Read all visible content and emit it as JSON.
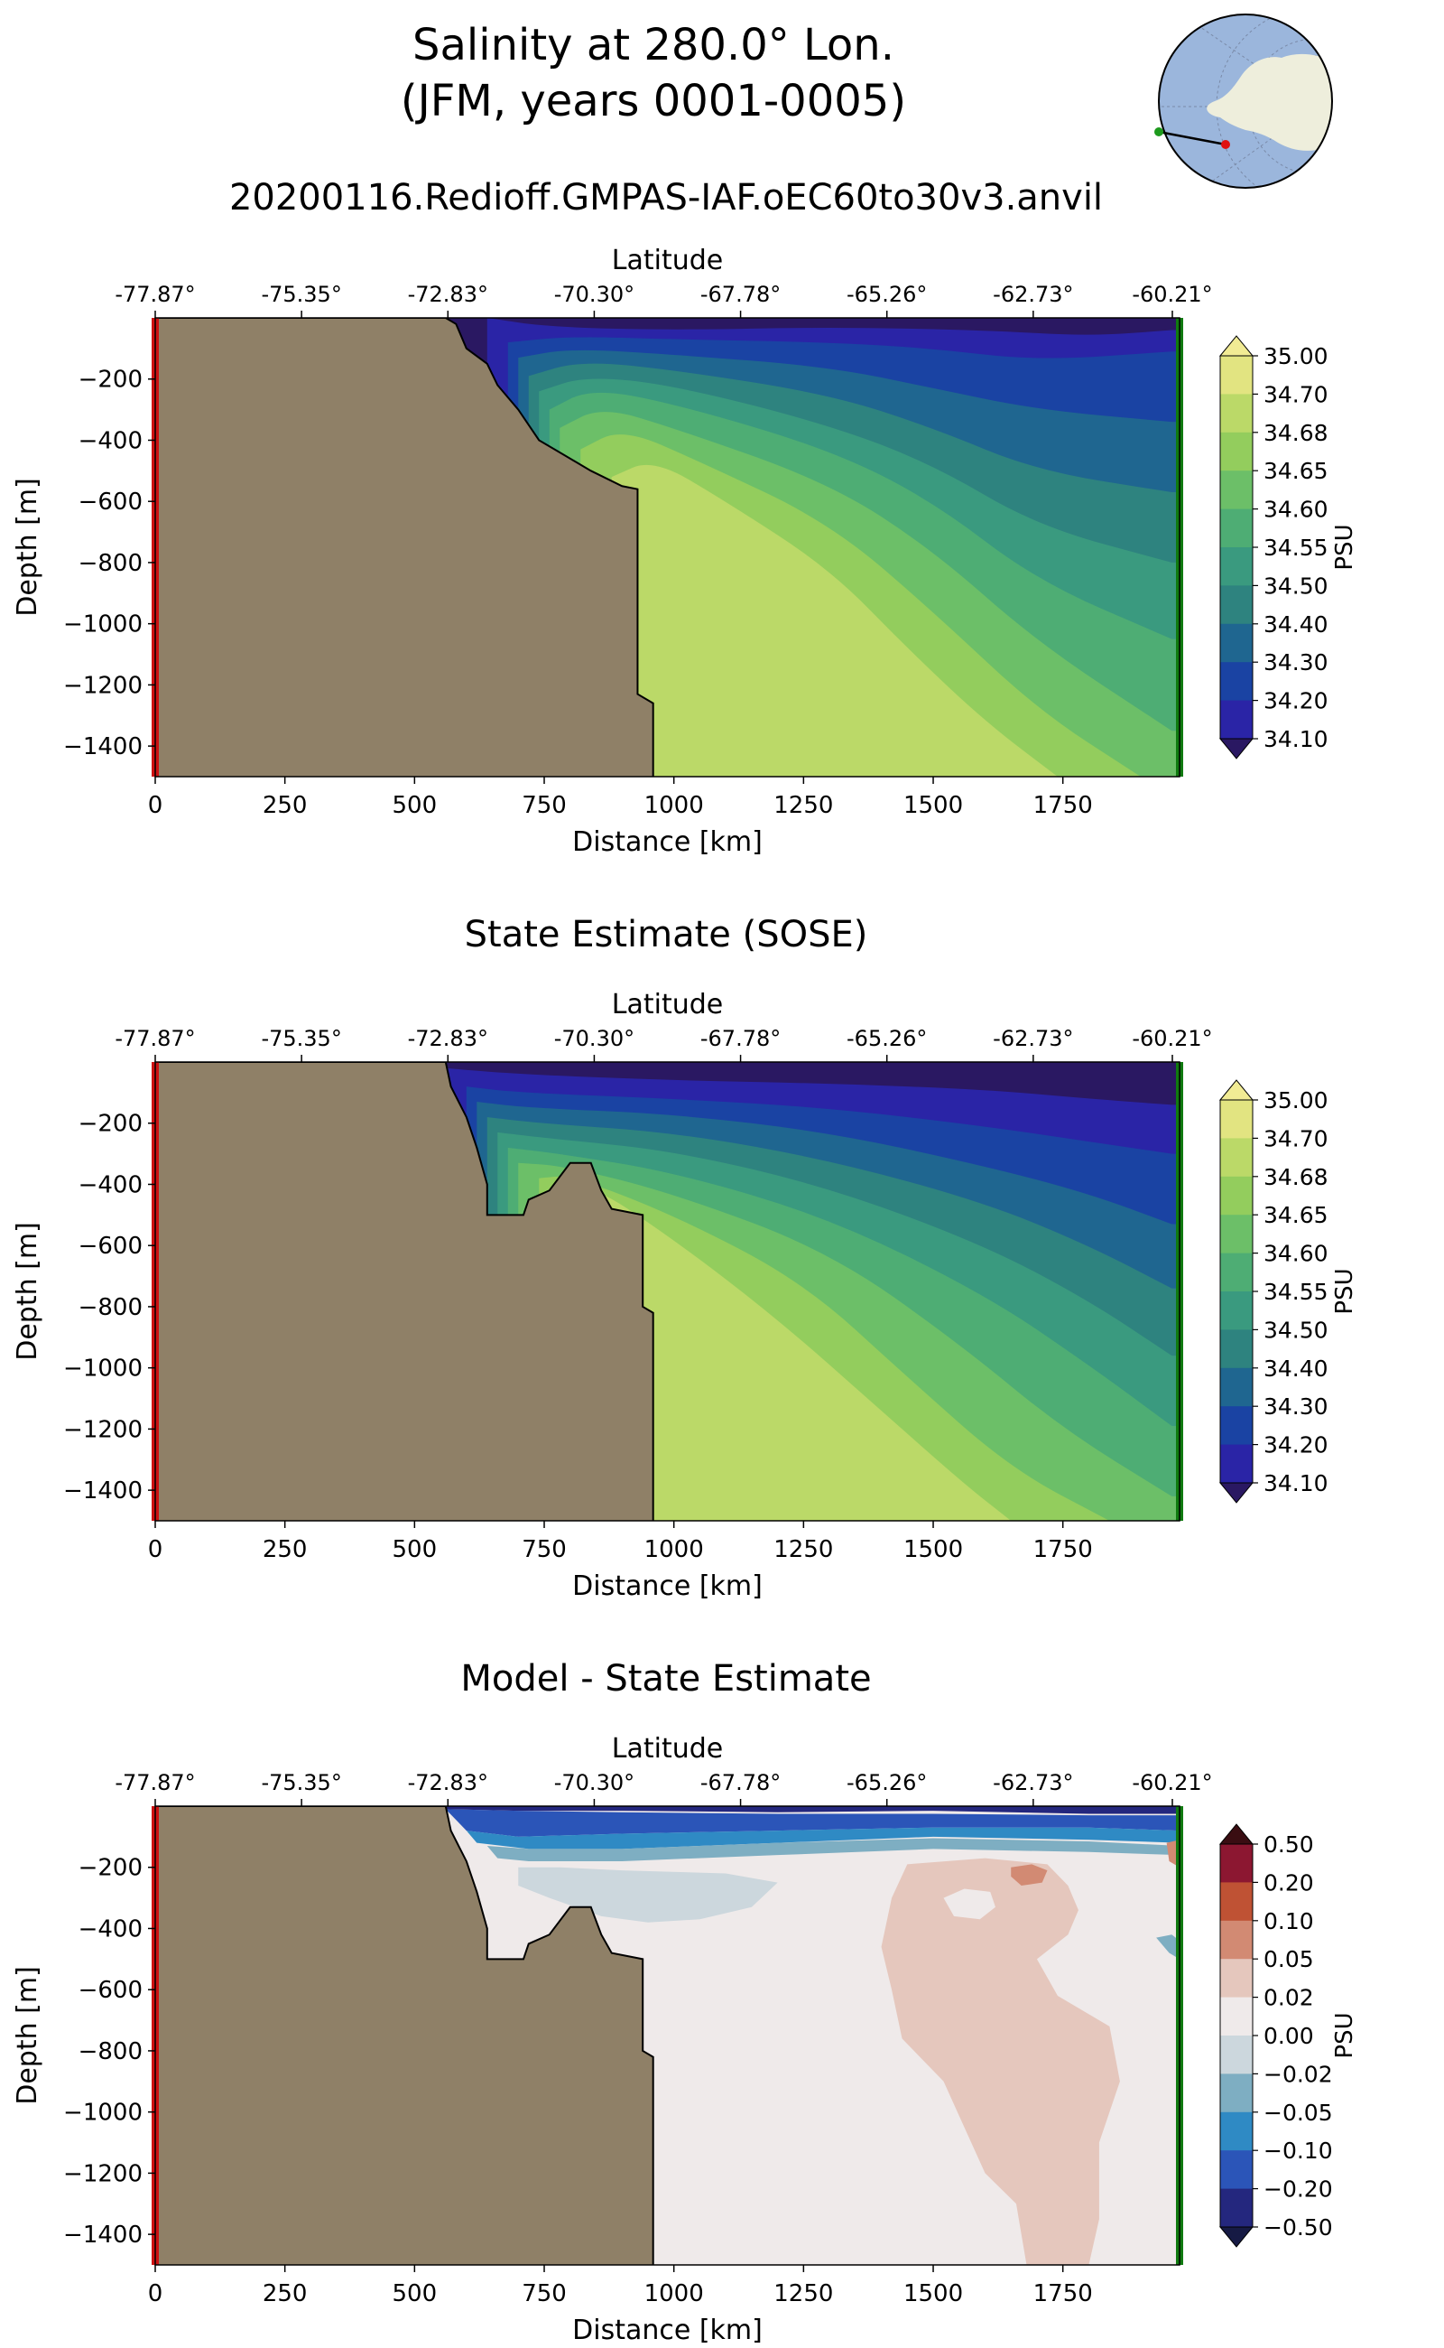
{
  "title_line1": "Salinity at 280.0° Lon.",
  "title_line2": "(JFM, years 0001-0005)",
  "run_name": "20200116.Redioff.GMPAS-IAF.oEC60to30v3.anvil",
  "colors": {
    "land": "#8f8067",
    "start_marker": "#cc1111",
    "end_marker": "#107a10",
    "ocean_globe": "#9bb6dc",
    "antarctica": "#eeeedc"
  },
  "chart_data": [
    {
      "type": "contourf",
      "title": "",
      "top_xlabel": "Latitude",
      "top_ticks": [
        "-77.87°",
        "-75.35°",
        "-72.83°",
        "-70.30°",
        "-67.78°",
        "-65.26°",
        "-62.73°",
        "-60.21°"
      ],
      "xlabel": "Distance [km]",
      "xticks": [
        0,
        250,
        500,
        750,
        1000,
        1250,
        1500,
        1750
      ],
      "xlim": [
        0,
        1975
      ],
      "ylabel": "Depth [m]",
      "yticks": [
        -200,
        -400,
        -600,
        -800,
        -1000,
        -1200,
        -1400
      ],
      "ylim": [
        -1500,
        0
      ],
      "colorbar_label": "PSU",
      "colorbar_ticks": [
        "35.00",
        "34.70",
        "34.68",
        "34.65",
        "34.60",
        "34.55",
        "34.50",
        "34.40",
        "34.30",
        "34.20",
        "34.10"
      ],
      "colorbar_colors": [
        "#f1eb94",
        "#e2e481",
        "#bbd968",
        "#93cd5d",
        "#6cbf68",
        "#4ead74",
        "#3a9a7f",
        "#2e837f",
        "#1f6690",
        "#1a43a3",
        "#2a24a6",
        "#2a1862"
      ],
      "colorbar_extend": "both",
      "isolines": [
        {
          "level": "34.10",
          "points": [
            [
              640,
              0
            ],
            [
              760,
              -30
            ],
            [
              1000,
              -40
            ],
            [
              1300,
              -30
            ],
            [
              1600,
              -40
            ],
            [
              1800,
              -60
            ],
            [
              1960,
              -40
            ]
          ]
        },
        {
          "level": "34.20",
          "points": [
            [
              680,
              -80
            ],
            [
              800,
              -60
            ],
            [
              1000,
              -70
            ],
            [
              1300,
              -80
            ],
            [
              1500,
              -100
            ],
            [
              1700,
              -140
            ],
            [
              1960,
              -110
            ]
          ]
        },
        {
          "level": "34.30",
          "points": [
            [
              700,
              -130
            ],
            [
              800,
              -100
            ],
            [
              1000,
              -120
            ],
            [
              1300,
              -160
            ],
            [
              1500,
              -230
            ],
            [
              1700,
              -300
            ],
            [
              1960,
              -340
            ]
          ]
        },
        {
          "level": "34.40",
          "points": [
            [
              720,
              -190
            ],
            [
              820,
              -140
            ],
            [
              1000,
              -170
            ],
            [
              1300,
              -250
            ],
            [
              1500,
              -360
            ],
            [
              1700,
              -500
            ],
            [
              1960,
              -570
            ]
          ]
        },
        {
          "level": "34.50",
          "points": [
            [
              740,
              -240
            ],
            [
              830,
              -190
            ],
            [
              1000,
              -220
            ],
            [
              1300,
              -350
            ],
            [
              1500,
              -480
            ],
            [
              1700,
              -680
            ],
            [
              1960,
              -800
            ]
          ]
        },
        {
          "level": "34.55",
          "points": [
            [
              760,
              -300
            ],
            [
              840,
              -230
            ],
            [
              1000,
              -280
            ],
            [
              1300,
              -430
            ],
            [
              1500,
              -600
            ],
            [
              1700,
              -860
            ],
            [
              1960,
              -1050
            ]
          ]
        },
        {
          "level": "34.60",
          "points": [
            [
              780,
              -360
            ],
            [
              860,
              -290
            ],
            [
              1000,
              -360
            ],
            [
              1300,
              -540
            ],
            [
              1500,
              -760
            ],
            [
              1700,
              -1060
            ],
            [
              1960,
              -1350
            ]
          ]
        },
        {
          "level": "34.65",
          "points": [
            [
              820,
              -430
            ],
            [
              900,
              -360
            ],
            [
              1050,
              -470
            ],
            [
              1300,
              -670
            ],
            [
              1500,
              -960
            ],
            [
              1700,
              -1280
            ],
            [
              1900,
              -1500
            ]
          ]
        },
        {
          "level": "34.68",
          "points": [
            [
              880,
              -520
            ],
            [
              960,
              -460
            ],
            [
              1100,
              -600
            ],
            [
              1300,
              -820
            ],
            [
              1450,
              -1080
            ],
            [
              1600,
              -1320
            ],
            [
              1740,
              -1500
            ]
          ]
        }
      ],
      "bathymetry_km_m": [
        [
          0,
          0
        ],
        [
          560,
          0
        ],
        [
          580,
          -20
        ],
        [
          600,
          -100
        ],
        [
          640,
          -150
        ],
        [
          660,
          -220
        ],
        [
          700,
          -300
        ],
        [
          740,
          -400
        ],
        [
          780,
          -440
        ],
        [
          840,
          -500
        ],
        [
          900,
          -550
        ],
        [
          930,
          -560
        ],
        [
          930,
          -1230
        ],
        [
          960,
          -1260
        ],
        [
          960,
          -1500
        ]
      ]
    },
    {
      "type": "contourf",
      "title": "State Estimate (SOSE)",
      "top_xlabel": "Latitude",
      "top_ticks": [
        "-77.87°",
        "-75.35°",
        "-72.83°",
        "-70.30°",
        "-67.78°",
        "-65.26°",
        "-62.73°",
        "-60.21°"
      ],
      "xlabel": "Distance [km]",
      "xticks": [
        0,
        250,
        500,
        750,
        1000,
        1250,
        1500,
        1750
      ],
      "xlim": [
        0,
        1975
      ],
      "ylabel": "Depth [m]",
      "yticks": [
        -200,
        -400,
        -600,
        -800,
        -1000,
        -1200,
        -1400
      ],
      "ylim": [
        -1500,
        0
      ],
      "colorbar_label": "PSU",
      "colorbar_ticks": [
        "35.00",
        "34.70",
        "34.68",
        "34.65",
        "34.60",
        "34.55",
        "34.50",
        "34.40",
        "34.30",
        "34.20",
        "34.10"
      ],
      "colorbar_colors": [
        "#f1eb94",
        "#e2e481",
        "#bbd968",
        "#93cd5d",
        "#6cbf68",
        "#4ead74",
        "#3a9a7f",
        "#2e837f",
        "#1f6690",
        "#1a43a3",
        "#2a24a6",
        "#2a1862"
      ],
      "colorbar_extend": "both",
      "isolines": [
        {
          "level": "34.10",
          "points": [
            [
              560,
              -20
            ],
            [
              700,
              -40
            ],
            [
              1000,
              -60
            ],
            [
              1300,
              -70
            ],
            [
              1600,
              -90
            ],
            [
              1800,
              -120
            ],
            [
              1960,
              -140
            ]
          ]
        },
        {
          "level": "34.20",
          "points": [
            [
              600,
              -80
            ],
            [
              700,
              -100
            ],
            [
              1000,
              -120
            ],
            [
              1300,
              -150
            ],
            [
              1600,
              -210
            ],
            [
              1800,
              -260
            ],
            [
              1960,
              -300
            ]
          ]
        },
        {
          "level": "34.30",
          "points": [
            [
              620,
              -130
            ],
            [
              720,
              -150
            ],
            [
              1000,
              -170
            ],
            [
              1300,
              -230
            ],
            [
              1600,
              -340
            ],
            [
              1800,
              -430
            ],
            [
              1960,
              -530
            ]
          ]
        },
        {
          "level": "34.40",
          "points": [
            [
              640,
              -180
            ],
            [
              740,
              -200
            ],
            [
              1000,
              -230
            ],
            [
              1300,
              -320
            ],
            [
              1600,
              -460
            ],
            [
              1800,
              -600
            ],
            [
              1960,
              -740
            ]
          ]
        },
        {
          "level": "34.50",
          "points": [
            [
              660,
              -230
            ],
            [
              760,
              -250
            ],
            [
              1000,
              -290
            ],
            [
              1300,
              -410
            ],
            [
              1600,
              -600
            ],
            [
              1800,
              -780
            ],
            [
              1960,
              -960
            ]
          ]
        },
        {
          "level": "34.55",
          "points": [
            [
              680,
              -280
            ],
            [
              780,
              -300
            ],
            [
              1000,
              -360
            ],
            [
              1300,
              -510
            ],
            [
              1600,
              -760
            ],
            [
              1800,
              -990
            ],
            [
              1960,
              -1190
            ]
          ]
        },
        {
          "level": "34.60",
          "points": [
            [
              700,
              -330
            ],
            [
              790,
              -340
            ],
            [
              1000,
              -430
            ],
            [
              1300,
              -620
            ],
            [
              1550,
              -920
            ],
            [
              1750,
              -1200
            ],
            [
              1960,
              -1420
            ]
          ]
        },
        {
          "level": "34.65",
          "points": [
            [
              740,
              -380
            ],
            [
              800,
              -370
            ],
            [
              1000,
              -500
            ],
            [
              1250,
              -720
            ],
            [
              1450,
              -1030
            ],
            [
              1650,
              -1330
            ],
            [
              1840,
              -1500
            ]
          ]
        },
        {
          "level": "34.68",
          "points": [
            [
              780,
              -420
            ],
            [
              840,
              -400
            ],
            [
              1000,
              -580
            ],
            [
              1200,
              -840
            ],
            [
              1400,
              -1140
            ],
            [
              1560,
              -1380
            ],
            [
              1650,
              -1500
            ]
          ]
        }
      ],
      "bathymetry_km_m": [
        [
          0,
          0
        ],
        [
          560,
          0
        ],
        [
          570,
          -80
        ],
        [
          600,
          -180
        ],
        [
          620,
          -280
        ],
        [
          640,
          -400
        ],
        [
          640,
          -500
        ],
        [
          710,
          -500
        ],
        [
          720,
          -450
        ],
        [
          760,
          -420
        ],
        [
          800,
          -330
        ],
        [
          840,
          -330
        ],
        [
          860,
          -420
        ],
        [
          880,
          -480
        ],
        [
          940,
          -500
        ],
        [
          940,
          -800
        ],
        [
          960,
          -820
        ],
        [
          960,
          -1500
        ]
      ]
    },
    {
      "type": "contourf",
      "title": "Model - State Estimate",
      "top_xlabel": "Latitude",
      "top_ticks": [
        "-77.87°",
        "-75.35°",
        "-72.83°",
        "-70.30°",
        "-67.78°",
        "-65.26°",
        "-62.73°",
        "-60.21°"
      ],
      "xlabel": "Distance [km]",
      "xticks": [
        0,
        250,
        500,
        750,
        1000,
        1250,
        1500,
        1750
      ],
      "xlim": [
        0,
        1975
      ],
      "ylabel": "Depth [m]",
      "yticks": [
        -200,
        -400,
        -600,
        -800,
        -1000,
        -1200,
        -1400
      ],
      "ylim": [
        -1500,
        0
      ],
      "colorbar_label": "PSU",
      "colorbar_ticks": [
        "0.50",
        "0.20",
        "0.10",
        "0.05",
        "0.02",
        "0.00",
        "−0.02",
        "−0.05",
        "−0.10",
        "−0.20",
        "−0.50"
      ],
      "colorbar_colors": [
        "#3a0d12",
        "#8c1731",
        "#bf5234",
        "#d28a73",
        "#e5c7bd",
        "#efeaea",
        "#ccd7dd",
        "#7eaec2",
        "#2f8ac4",
        "#2b55b8",
        "#24277e",
        "#161a44"
      ],
      "colorbar_extend": "both",
      "isolines": [],
      "bathymetry_km_m": [
        [
          0,
          0
        ],
        [
          560,
          0
        ],
        [
          570,
          -80
        ],
        [
          600,
          -180
        ],
        [
          620,
          -280
        ],
        [
          640,
          -400
        ],
        [
          640,
          -500
        ],
        [
          710,
          -500
        ],
        [
          720,
          -450
        ],
        [
          760,
          -420
        ],
        [
          800,
          -330
        ],
        [
          840,
          -330
        ],
        [
          860,
          -420
        ],
        [
          880,
          -480
        ],
        [
          940,
          -500
        ],
        [
          940,
          -800
        ],
        [
          960,
          -820
        ],
        [
          960,
          -1500
        ]
      ]
    }
  ]
}
